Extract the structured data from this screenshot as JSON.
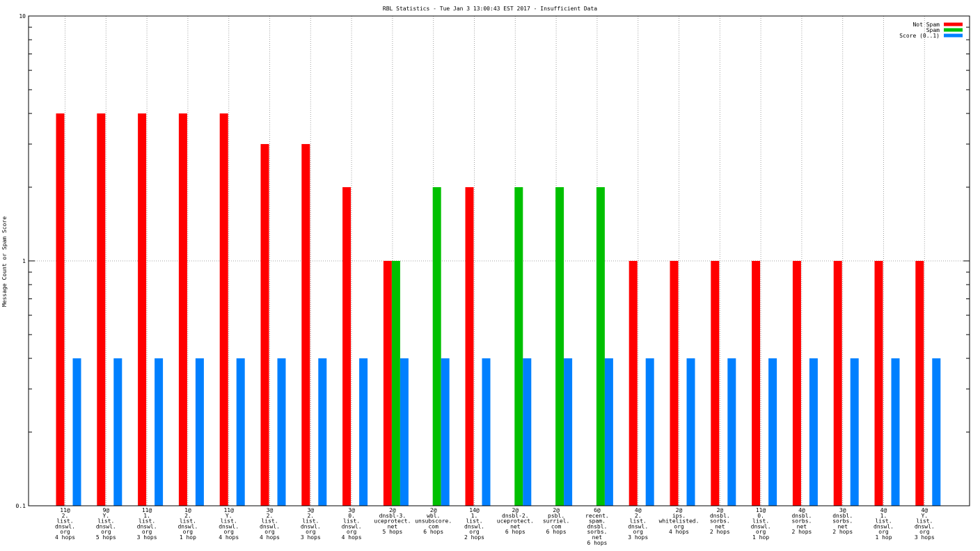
{
  "chart_data": {
    "type": "bar",
    "title": "RBL Statistics - Tue Jan  3 13:00:43 EST 2017 - Insufficient Data",
    "ylabel": "Message Count or Spam Score",
    "xlabel": "",
    "yscale": "log",
    "ylim": [
      0.1,
      10
    ],
    "ytick_labels": [
      "10",
      "1",
      "0.1"
    ],
    "grid": true,
    "legend_position": "top-right",
    "categories": [
      [
        "11@",
        "2.",
        "list.",
        "dnswl.",
        "org",
        "4 hops"
      ],
      [
        "9@",
        "Y.",
        "list.",
        "dnswl.",
        "org",
        "5 hops"
      ],
      [
        "11@",
        "1.",
        "list.",
        "dnswl.",
        "org",
        "3 hops"
      ],
      [
        "1@",
        "2.",
        "list.",
        "dnswl.",
        "org",
        "1 hop"
      ],
      [
        "11@",
        "Y.",
        "list.",
        "dnswl.",
        "org",
        "4 hops"
      ],
      [
        "3@",
        "2.",
        "list.",
        "dnswl.",
        "org",
        "4 hops"
      ],
      [
        "3@",
        "2.",
        "list.",
        "dnswl.",
        "org",
        "3 hops"
      ],
      [
        "3@",
        "0.",
        "list.",
        "dnswl.",
        "org",
        "4 hops"
      ],
      [
        "2@",
        "dnsbl-3.",
        "uceprotect.",
        "net",
        "5 hops"
      ],
      [
        "2@",
        "wbl.",
        "unsubscore.",
        "com",
        "6 hops"
      ],
      [
        "14@",
        "1.",
        "list.",
        "dnswl.",
        "org",
        "2 hops"
      ],
      [
        "2@",
        "dnsbl-2.",
        "uceprotect.",
        "net",
        "6 hops"
      ],
      [
        "2@",
        "psbl.",
        "surriel.",
        "com",
        "6 hops"
      ],
      [
        "6@",
        "recent.",
        "spam.",
        "dnsbl.",
        "sorbs.",
        "net",
        "6 hops"
      ],
      [
        "4@",
        "2.",
        "list.",
        "dnswl.",
        "org",
        "3 hops"
      ],
      [
        "2@",
        "ips.",
        "whitelisted.",
        "org",
        "4 hops"
      ],
      [
        "2@",
        "dnsbl.",
        "sorbs.",
        "net",
        "2 hops"
      ],
      [
        "11@",
        "0.",
        "list.",
        "dnswl.",
        "org",
        "1 hop"
      ],
      [
        "4@",
        "dnsbl.",
        "sorbs.",
        "net",
        "2 hops"
      ],
      [
        "3@",
        "dnsbl.",
        "sorbs.",
        "net",
        "2 hops"
      ],
      [
        "4@",
        "1.",
        "list.",
        "dnswl.",
        "org",
        "1 hop"
      ],
      [
        "4@",
        "Y.",
        "list.",
        "dnswl.",
        "org",
        "3 hops"
      ]
    ],
    "series": [
      {
        "name": "Not Spam",
        "color": "#ff0000",
        "values": [
          4,
          4,
          4,
          4,
          4,
          3,
          3,
          2,
          1,
          0,
          2,
          0,
          0,
          0,
          1,
          1,
          1,
          1,
          1,
          1,
          1,
          1
        ]
      },
      {
        "name": "Spam",
        "color": "#00c000",
        "values": [
          0,
          0,
          0,
          0,
          0,
          0,
          0,
          0,
          1,
          2,
          0,
          2,
          2,
          2,
          0,
          0,
          0,
          0,
          0,
          0,
          0,
          0
        ]
      },
      {
        "name": "Score (0..1)",
        "color": "#0080ff",
        "values": [
          0.4,
          0.4,
          0.4,
          0.4,
          0.4,
          0.4,
          0.4,
          0.4,
          0.4,
          0.4,
          0.4,
          0.4,
          0.4,
          0.4,
          0.4,
          0.4,
          0.4,
          0.4,
          0.4,
          0.4,
          0.4,
          0.4
        ]
      }
    ]
  }
}
